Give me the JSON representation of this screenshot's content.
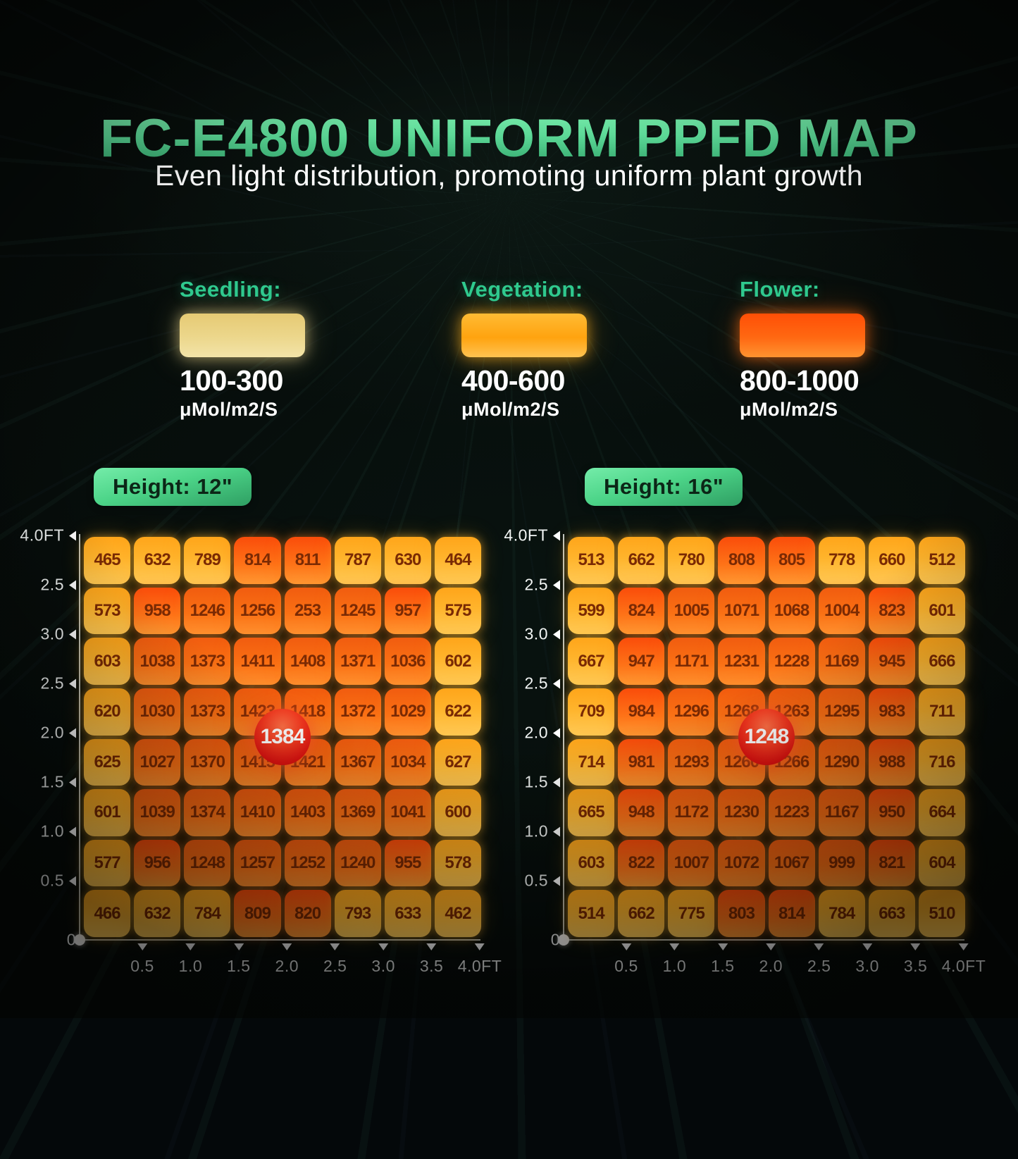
{
  "title": "FC-E4800 UNIFORM PPFD MAP",
  "subtitle": "Even light distribution, promoting uniform plant growth",
  "legend": {
    "items": [
      {
        "label": "Seedling:",
        "range": "100-300",
        "unit": "μMol/m2/S",
        "swatch_color": "#ecd78c"
      },
      {
        "label": "Vegetation:",
        "range": "400-600",
        "unit": "μMol/m2/S",
        "swatch_color": "#ffa30f"
      },
      {
        "label": "Flower:",
        "range": "800-1000",
        "unit": "μMol/m2/S",
        "swatch_color": "#ff6812"
      }
    ]
  },
  "palette": {
    "accent_green": "#2fc98e",
    "title_gradient_top": "#7deeae",
    "title_gradient_bottom": "#2fa168",
    "height_badge_green": "#4cd488",
    "tile_gold": "#ffb42c",
    "tile_red_orange": "#fe7418",
    "tile_deep_orange": "#fa7014",
    "center_badge_red": "#e01210",
    "axis_color": "#bfc6c5"
  },
  "chart_data": [
    {
      "type": "heatmap",
      "title": "Height: 12\"",
      "center_value": 1384,
      "x_ticks": [
        "0.5",
        "1.0",
        "1.5",
        "2.0",
        "2.5",
        "3.0",
        "3.5",
        "4.0FT"
      ],
      "y_ticks": [
        "4.0FT",
        "2.5",
        "3.0",
        "2.5",
        "2.0",
        "1.5",
        "1.0",
        "0.5",
        "0"
      ],
      "values": [
        [
          465,
          632,
          789,
          814,
          811,
          787,
          630,
          464
        ],
        [
          573,
          958,
          1246,
          1256,
          253,
          1245,
          957,
          575
        ],
        [
          603,
          1038,
          1373,
          1411,
          1408,
          1371,
          1036,
          602
        ],
        [
          620,
          1030,
          1373,
          1423,
          1418,
          1372,
          1029,
          622
        ],
        [
          625,
          1027,
          1370,
          1415,
          1421,
          1367,
          1034,
          627
        ],
        [
          601,
          1039,
          1374,
          1410,
          1403,
          1369,
          1041,
          600
        ],
        [
          577,
          956,
          1248,
          1257,
          1252,
          1240,
          955,
          578
        ],
        [
          466,
          632,
          784,
          809,
          820,
          793,
          633,
          462
        ]
      ],
      "cell_colors": [
        [
          "g",
          "g",
          "g",
          "r",
          "r",
          "g",
          "g",
          "g"
        ],
        [
          "g",
          "r",
          "d",
          "d",
          "d",
          "d",
          "r",
          "g"
        ],
        [
          "g",
          "d",
          "d",
          "d",
          "d",
          "d",
          "d",
          "g"
        ],
        [
          "g",
          "d",
          "d",
          "d",
          "d",
          "d",
          "d",
          "g"
        ],
        [
          "g",
          "d",
          "d",
          "d",
          "d",
          "d",
          "d",
          "g"
        ],
        [
          "g",
          "d",
          "d",
          "d",
          "d",
          "d",
          "d",
          "g"
        ],
        [
          "g",
          "r",
          "d",
          "d",
          "d",
          "d",
          "r",
          "g"
        ],
        [
          "g",
          "g",
          "g",
          "r",
          "r",
          "g",
          "g",
          "g"
        ]
      ]
    },
    {
      "type": "heatmap",
      "title": "Height: 16\"",
      "center_value": 1248,
      "x_ticks": [
        "0.5",
        "1.0",
        "1.5",
        "2.0",
        "2.5",
        "3.0",
        "3.5",
        "4.0FT"
      ],
      "y_ticks": [
        "4.0FT",
        "2.5",
        "3.0",
        "2.5",
        "2.0",
        "1.5",
        "1.0",
        "0.5",
        "0"
      ],
      "values": [
        [
          513,
          662,
          780,
          808,
          805,
          778,
          660,
          512
        ],
        [
          599,
          824,
          1005,
          1071,
          1068,
          1004,
          823,
          601
        ],
        [
          667,
          947,
          1171,
          1231,
          1228,
          1169,
          945,
          666
        ],
        [
          709,
          984,
          1296,
          1268,
          1263,
          1295,
          983,
          711
        ],
        [
          714,
          981,
          1293,
          1260,
          1266,
          1290,
          988,
          716
        ],
        [
          665,
          948,
          1172,
          1230,
          1223,
          1167,
          950,
          664
        ],
        [
          603,
          822,
          1007,
          1072,
          1067,
          999,
          821,
          604
        ],
        [
          514,
          662,
          775,
          803,
          814,
          784,
          663,
          510
        ]
      ],
      "cell_colors": [
        [
          "g",
          "g",
          "g",
          "r",
          "r",
          "g",
          "g",
          "g"
        ],
        [
          "g",
          "r",
          "d",
          "d",
          "d",
          "d",
          "r",
          "g"
        ],
        [
          "g",
          "r",
          "d",
          "d",
          "d",
          "d",
          "r",
          "g"
        ],
        [
          "g",
          "r",
          "d",
          "d",
          "d",
          "d",
          "r",
          "g"
        ],
        [
          "g",
          "r",
          "d",
          "d",
          "d",
          "d",
          "r",
          "g"
        ],
        [
          "g",
          "r",
          "d",
          "d",
          "d",
          "d",
          "r",
          "g"
        ],
        [
          "g",
          "r",
          "d",
          "d",
          "d",
          "d",
          "r",
          "g"
        ],
        [
          "g",
          "g",
          "g",
          "r",
          "r",
          "g",
          "g",
          "g"
        ]
      ]
    }
  ]
}
